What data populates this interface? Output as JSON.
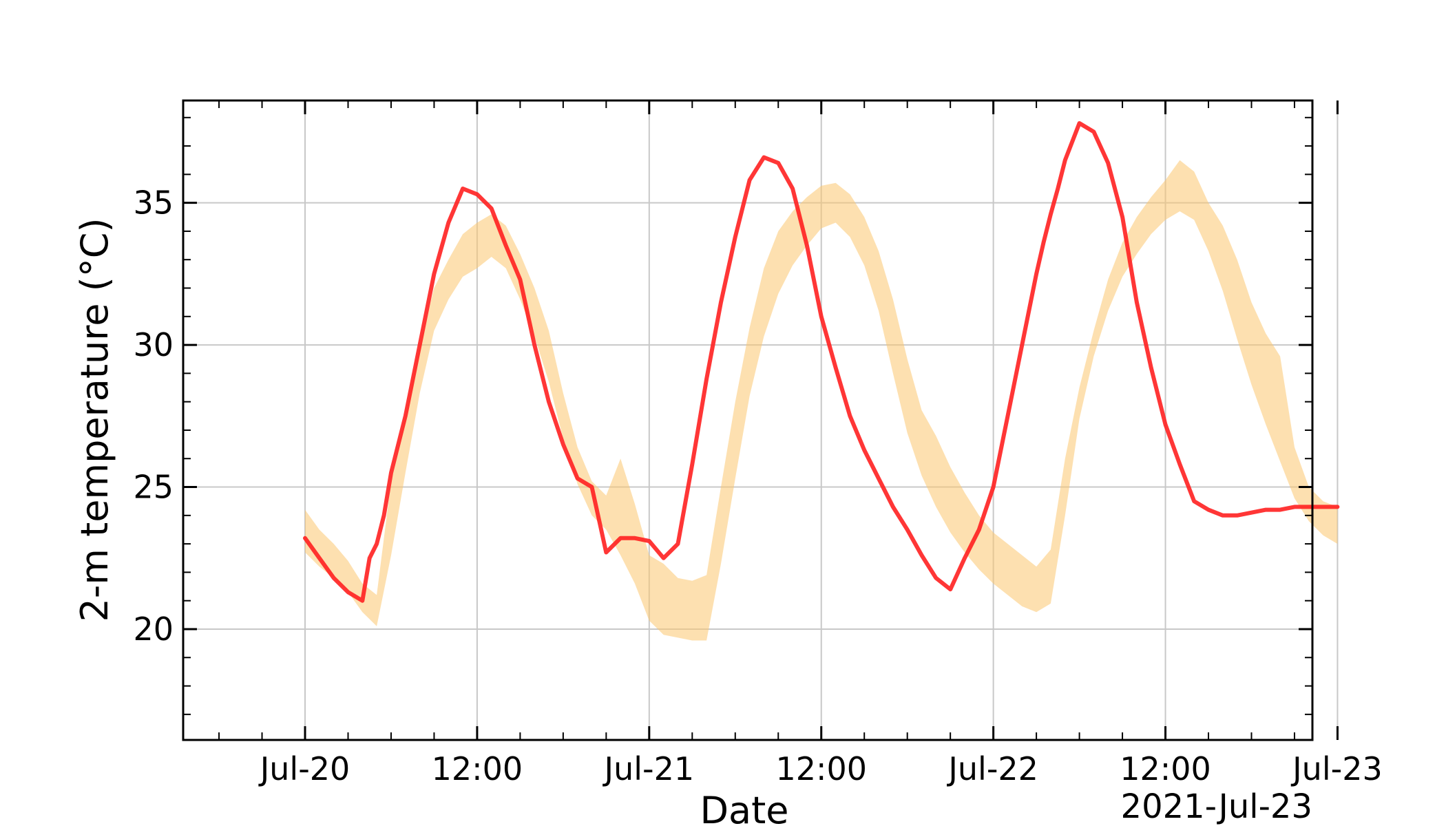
{
  "chart_data": {
    "type": "line",
    "title": "",
    "xlabel": "Date",
    "ylabel": "2-m temperature (°C)",
    "corner_label": "2021-Jul-23",
    "x_unit": "hours from 2021-07-20 00:00",
    "xlim": [
      -8.5,
      70.25
    ],
    "ylim": [
      16.1,
      38.6
    ],
    "x_ticks": [
      {
        "x": 0,
        "label": "Jul-20"
      },
      {
        "x": 12,
        "label": "12:00"
      },
      {
        "x": 24,
        "label": "Jul-21"
      },
      {
        "x": 36,
        "label": "12:00"
      },
      {
        "x": 48,
        "label": "Jul-22"
      },
      {
        "x": 60,
        "label": "12:00"
      },
      {
        "x": 72,
        "label": "Jul-23"
      }
    ],
    "y_ticks": [
      {
        "y": 20,
        "label": "20"
      },
      {
        "y": 25,
        "label": "25"
      },
      {
        "y": 30,
        "label": "30"
      },
      {
        "y": 35,
        "label": "35"
      }
    ],
    "grid": true,
    "legend": "none",
    "band": {
      "color": "#fbc66f",
      "opacity": 0.55,
      "x": [
        0,
        1,
        2,
        3,
        4,
        5,
        6,
        7,
        8,
        9,
        10,
        11,
        12,
        13,
        14,
        15,
        16,
        17,
        18,
        19,
        20,
        21,
        22,
        23,
        24,
        25,
        26,
        27,
        28,
        29,
        30,
        31,
        32,
        33,
        34,
        35,
        36,
        37,
        38,
        39,
        40,
        41,
        42,
        43,
        44,
        45,
        46,
        47,
        48,
        49,
        50,
        51,
        52,
        53,
        54,
        55,
        56,
        57,
        58,
        59,
        60,
        61,
        62,
        63,
        64,
        65,
        66,
        67,
        68,
        69,
        70,
        71,
        72
      ],
      "upper": [
        24.2,
        23.5,
        23.0,
        22.4,
        21.6,
        21.2,
        25.2,
        27.5,
        30.0,
        32.0,
        33.0,
        33.9,
        34.3,
        34.6,
        34.2,
        33.2,
        32.0,
        30.5,
        28.3,
        26.4,
        25.2,
        24.7,
        26.0,
        24.4,
        22.6,
        22.3,
        21.8,
        21.7,
        21.9,
        25.0,
        28.0,
        30.6,
        32.7,
        34.0,
        34.7,
        35.2,
        35.6,
        35.7,
        35.3,
        34.5,
        33.3,
        31.6,
        29.5,
        27.7,
        26.8,
        25.7,
        24.8,
        24.0,
        23.4,
        23.0,
        22.6,
        22.2,
        22.8,
        26.0,
        28.5,
        30.5,
        32.3,
        33.6,
        34.5,
        35.2,
        35.8,
        36.5,
        36.1,
        35.0,
        34.2,
        33.0,
        31.5,
        30.4,
        29.6,
        26.4,
        25.0,
        24.5,
        24.3
      ],
      "lower": [
        22.7,
        22.2,
        21.8,
        21.3,
        20.6,
        20.1,
        22.6,
        25.5,
        28.3,
        30.5,
        31.6,
        32.4,
        32.7,
        33.1,
        32.7,
        31.6,
        30.3,
        28.7,
        26.7,
        25.1,
        24.0,
        23.5,
        22.6,
        21.6,
        20.3,
        19.8,
        19.7,
        19.6,
        19.6,
        22.3,
        25.3,
        28.2,
        30.3,
        31.8,
        32.8,
        33.5,
        34.1,
        34.3,
        33.8,
        32.8,
        31.2,
        29.0,
        26.9,
        25.4,
        24.3,
        23.4,
        22.7,
        22.1,
        21.6,
        21.2,
        20.8,
        20.6,
        20.9,
        24.0,
        27.4,
        29.6,
        31.2,
        32.4,
        33.2,
        33.9,
        34.4,
        34.7,
        34.4,
        33.3,
        31.9,
        30.2,
        28.6,
        27.2,
        25.9,
        24.6,
        23.8,
        23.3,
        23.0
      ]
    },
    "series": [
      {
        "color": "#ff2020",
        "x": [
          0,
          1,
          2,
          3,
          4,
          4.5,
          5,
          5.5,
          6,
          7,
          8,
          9,
          10,
          11,
          12,
          13,
          14,
          15,
          16,
          17,
          18,
          19,
          20,
          21,
          22,
          23,
          24,
          25,
          26,
          27,
          28,
          29,
          30,
          31,
          32,
          33,
          34,
          35,
          36,
          37,
          38,
          39,
          40,
          41,
          42,
          43,
          44,
          45,
          46,
          47,
          48,
          49,
          50,
          51,
          51.5,
          52,
          52.5,
          53,
          54,
          55,
          56,
          57,
          58,
          59,
          60,
          61,
          62,
          63,
          64,
          65,
          66,
          67,
          68,
          69,
          70,
          71,
          72
        ],
        "values": [
          23.2,
          22.5,
          21.8,
          21.3,
          21.0,
          22.5,
          23.0,
          24.0,
          25.5,
          27.5,
          30.0,
          32.5,
          34.3,
          35.5,
          35.3,
          34.8,
          33.5,
          32.3,
          30.0,
          28.0,
          26.5,
          25.3,
          25.0,
          22.7,
          23.2,
          23.2,
          23.1,
          22.5,
          23.0,
          25.8,
          28.8,
          31.5,
          33.8,
          35.8,
          36.6,
          36.4,
          35.5,
          33.5,
          31.0,
          29.2,
          27.5,
          26.3,
          25.3,
          24.3,
          23.5,
          22.6,
          21.8,
          21.4,
          22.5,
          23.5,
          25.0,
          27.5,
          30.0,
          32.5,
          33.6,
          34.6,
          35.5,
          36.5,
          37.8,
          37.5,
          36.4,
          34.5,
          31.5,
          29.2,
          27.2,
          25.8,
          24.5,
          24.2,
          24.0,
          24.0,
          24.1,
          24.2,
          24.2,
          24.3,
          24.3,
          24.3,
          24.3
        ]
      }
    ]
  }
}
